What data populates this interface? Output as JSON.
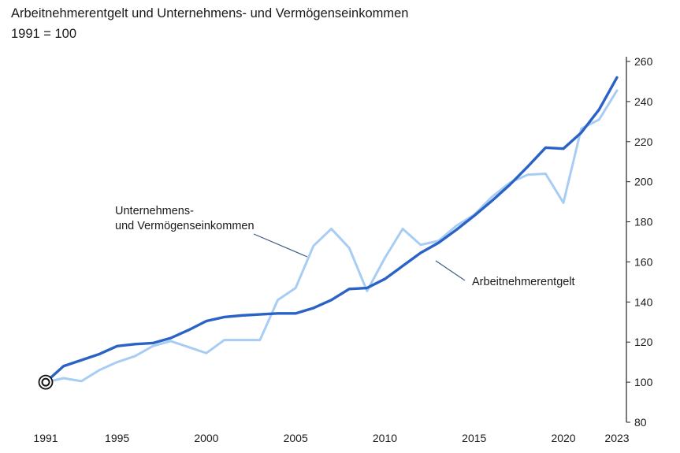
{
  "chart_data": {
    "type": "line",
    "title": "Arbeitnehmerentgelt und Unternehmens- und Vermögenseinkommen",
    "subtitle": "1991 = 100",
    "x": [
      1991,
      1992,
      1993,
      1994,
      1995,
      1996,
      1997,
      1998,
      1999,
      2000,
      2001,
      2002,
      2003,
      2004,
      2005,
      2006,
      2007,
      2008,
      2009,
      2010,
      2011,
      2012,
      2013,
      2014,
      2015,
      2016,
      2017,
      2018,
      2019,
      2020,
      2021,
      2022,
      2023
    ],
    "x_ticks": [
      "1991",
      "1995",
      "2000",
      "2005",
      "2010",
      "2015",
      "2020",
      "2023"
    ],
    "y_ticks": [
      "80",
      "100",
      "120",
      "140",
      "160",
      "180",
      "200",
      "220",
      "240",
      "260"
    ],
    "ylim": [
      80,
      260
    ],
    "y_axis_side": "right",
    "series": [
      {
        "name": "Arbeitnehmerentgelt",
        "color": "#2a62c6",
        "values": [
          100,
          108,
          111,
          114,
          118,
          119,
          119.5,
          122,
          126,
          130.5,
          132.5,
          133.3,
          133.8,
          134.3,
          134.3,
          137,
          141,
          146.5,
          147,
          151.5,
          158,
          164.5,
          169.5,
          176,
          183,
          190.5,
          198.5,
          207.5,
          217,
          216.5,
          224.5,
          236,
          252
        ]
      },
      {
        "name": "Unternehmens- und Vermögenseinkommen",
        "color": "#a8cdf4",
        "values": [
          100,
          102,
          100.5,
          106,
          110,
          113,
          118,
          120.5,
          117.5,
          114.5,
          121,
          121,
          121,
          141,
          147,
          168,
          176.5,
          167,
          145.5,
          162,
          176.5,
          168.5,
          170.5,
          178,
          183.5,
          192.5,
          199.5,
          203.5,
          204,
          189.5,
          226.5,
          231,
          245.5
        ]
      }
    ],
    "annotations": [
      {
        "lines": [
          "Unternehmens-",
          "und Vermögenseinkommen"
        ],
        "series": "Unternehmens- und Vermögenseinkommen"
      },
      {
        "lines": [
          "Arbeitnehmerentgelt"
        ],
        "series": "Arbeitnehmerentgelt"
      }
    ],
    "grid": false,
    "base_marker_year": 1991
  }
}
